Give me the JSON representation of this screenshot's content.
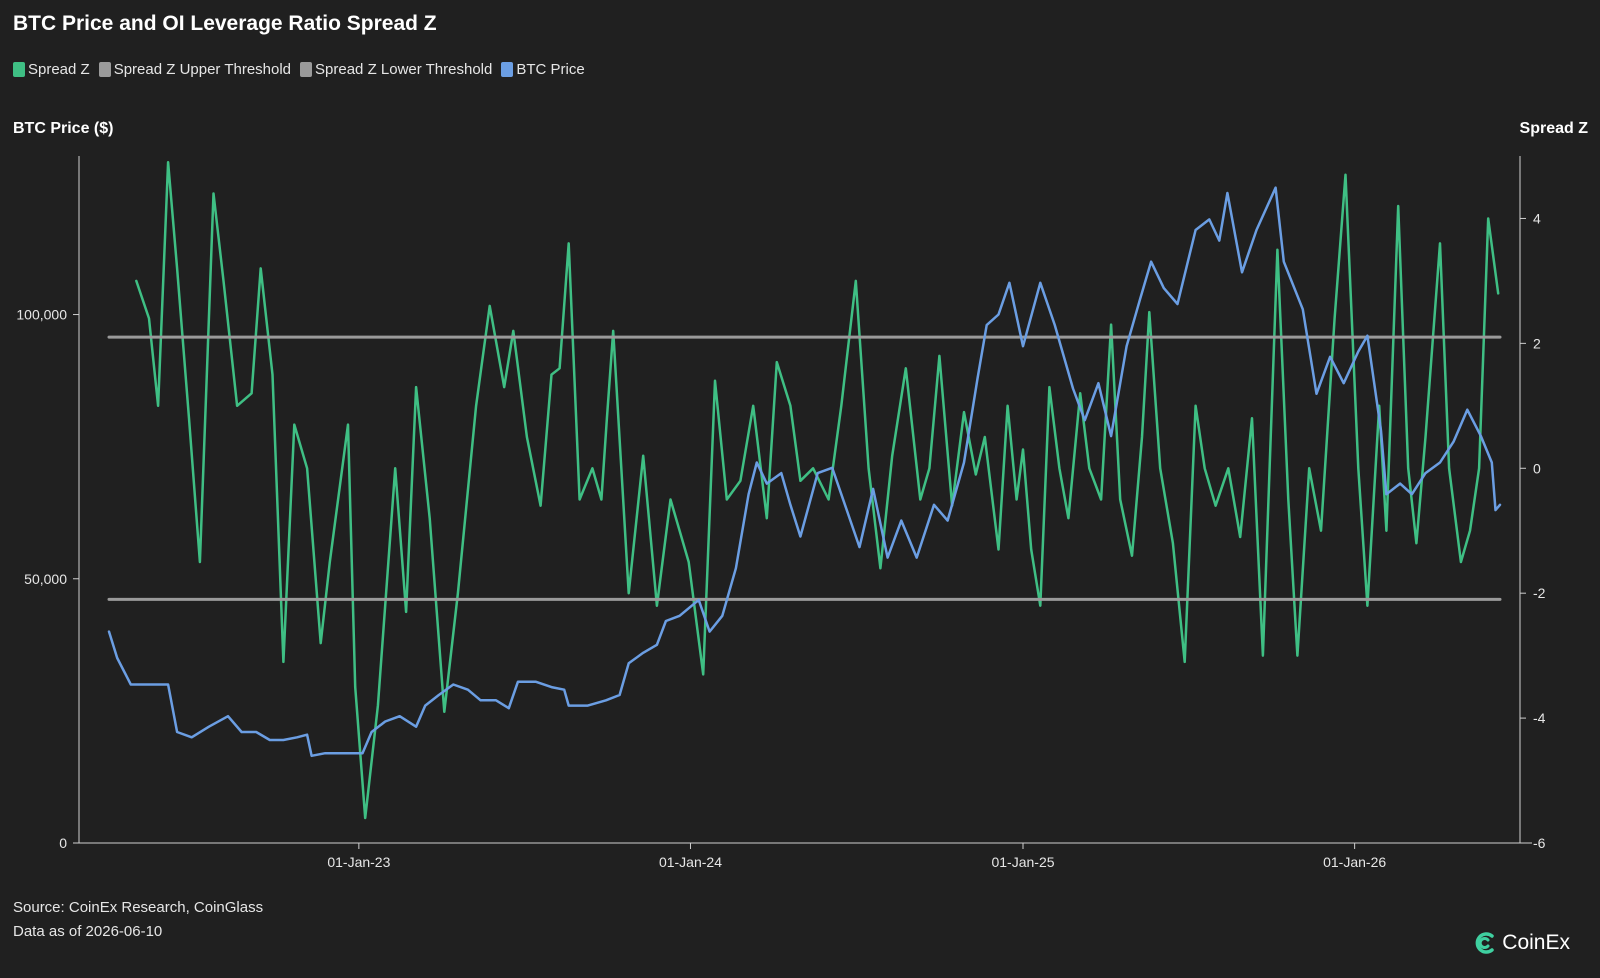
{
  "header": {
    "title": "BTC Price and OI Leverage Ratio Spread Z"
  },
  "legend": [
    {
      "label": "Spread Z",
      "color": "#3fbf84"
    },
    {
      "label": "Spread Z Upper Threshold",
      "color": "#9a9a9a"
    },
    {
      "label": "Spread Z Lower Threshold",
      "color": "#9a9a9a"
    },
    {
      "label": "BTC Price",
      "color": "#6b9ee3"
    }
  ],
  "axes": {
    "left_title": "BTC Price ($)",
    "right_title": "Spread Z"
  },
  "footer": {
    "source": "Source: CoinEx Research, CoinGlass",
    "data_as_of": "Data as of 2026-06-10"
  },
  "logo": {
    "text": "CoinEx",
    "icon": "coinex-logo-icon",
    "color": "#3fd0a0"
  },
  "chart_data": {
    "type": "line",
    "x_range": [
      "2022-04-01",
      "2026-06-10"
    ],
    "x_ticks": [
      {
        "date": "2023-01-01",
        "label": "01-Jan-23"
      },
      {
        "date": "2024-01-01",
        "label": "01-Jan-24"
      },
      {
        "date": "2025-01-01",
        "label": "01-Jan-25"
      },
      {
        "date": "2026-01-01",
        "label": "01-Jan-26"
      }
    ],
    "y_left": {
      "title": "BTC Price ($)",
      "range": [
        0,
        130000
      ],
      "ticks": [
        0,
        50000,
        100000
      ],
      "tick_labels": [
        "0",
        "50,000",
        "100,000"
      ]
    },
    "y_right": {
      "title": "Spread Z",
      "range": [
        -6,
        5
      ],
      "ticks": [
        -6,
        -4,
        -2,
        0,
        2,
        4
      ],
      "tick_labels": [
        "-6",
        "-4",
        "-2",
        "0",
        "2",
        "4"
      ]
    },
    "grid": false,
    "legend_position": "top-left",
    "series": [
      {
        "name": "Spread Z",
        "axis": "right",
        "color": "#3fbf84",
        "points": [
          [
            "2022-05-01",
            3.0
          ],
          [
            "2022-05-15",
            2.4
          ],
          [
            "2022-05-25",
            1.0
          ],
          [
            "2022-06-05",
            4.9
          ],
          [
            "2022-06-15",
            3.2
          ],
          [
            "2022-06-28",
            0.8
          ],
          [
            "2022-07-10",
            -1.5
          ],
          [
            "2022-07-25",
            4.4
          ],
          [
            "2022-08-05",
            3.0
          ],
          [
            "2022-08-20",
            1.0
          ],
          [
            "2022-09-05",
            1.2
          ],
          [
            "2022-09-15",
            3.2
          ],
          [
            "2022-09-28",
            1.5
          ],
          [
            "2022-10-10",
            -3.1
          ],
          [
            "2022-10-22",
            0.7
          ],
          [
            "2022-11-05",
            0.0
          ],
          [
            "2022-11-20",
            -2.8
          ],
          [
            "2022-11-30",
            -1.5
          ],
          [
            "2022-12-20",
            0.7
          ],
          [
            "2022-12-28",
            -3.5
          ],
          [
            "2023-01-08",
            -5.6
          ],
          [
            "2023-01-22",
            -3.8
          ],
          [
            "2023-02-10",
            0.0
          ],
          [
            "2023-02-22",
            -2.3
          ],
          [
            "2023-03-05",
            1.3
          ],
          [
            "2023-03-20",
            -0.8
          ],
          [
            "2023-04-05",
            -3.9
          ],
          [
            "2023-04-20",
            -2.0
          ],
          [
            "2023-05-10",
            1.0
          ],
          [
            "2023-05-25",
            2.6
          ],
          [
            "2023-06-10",
            1.3
          ],
          [
            "2023-06-20",
            2.2
          ],
          [
            "2023-07-05",
            0.5
          ],
          [
            "2023-07-20",
            -0.6
          ],
          [
            "2023-08-01",
            1.5
          ],
          [
            "2023-08-10",
            1.6
          ],
          [
            "2023-08-20",
            3.6
          ],
          [
            "2023-09-01",
            -0.5
          ],
          [
            "2023-09-15",
            0.0
          ],
          [
            "2023-09-25",
            -0.5
          ],
          [
            "2023-10-01",
            0.8
          ],
          [
            "2023-10-08",
            2.2
          ],
          [
            "2023-10-25",
            -2.0
          ],
          [
            "2023-11-10",
            0.2
          ],
          [
            "2023-11-25",
            -2.2
          ],
          [
            "2023-12-10",
            -0.5
          ],
          [
            "2023-12-20",
            -1.0
          ],
          [
            "2023-12-30",
            -1.5
          ],
          [
            "2024-01-15",
            -3.3
          ],
          [
            "2024-01-28",
            1.4
          ],
          [
            "2024-02-10",
            -0.5
          ],
          [
            "2024-02-25",
            -0.2
          ],
          [
            "2024-03-10",
            1.0
          ],
          [
            "2024-03-25",
            -0.8
          ],
          [
            "2024-04-05",
            1.7
          ],
          [
            "2024-04-20",
            1.0
          ],
          [
            "2024-05-01",
            -0.2
          ],
          [
            "2024-05-15",
            0.0
          ],
          [
            "2024-06-01",
            -0.5
          ],
          [
            "2024-06-15",
            1.0
          ],
          [
            "2024-07-01",
            3.0
          ],
          [
            "2024-07-15",
            0.0
          ],
          [
            "2024-07-28",
            -1.6
          ],
          [
            "2024-08-10",
            0.2
          ],
          [
            "2024-08-25",
            1.6
          ],
          [
            "2024-09-10",
            -0.5
          ],
          [
            "2024-09-20",
            0.0
          ],
          [
            "2024-10-01",
            1.8
          ],
          [
            "2024-10-15",
            -0.6
          ],
          [
            "2024-10-28",
            0.9
          ],
          [
            "2024-11-10",
            -0.1
          ],
          [
            "2024-11-20",
            0.5
          ],
          [
            "2024-12-05",
            -1.3
          ],
          [
            "2024-12-15",
            1.0
          ],
          [
            "2024-12-25",
            -0.5
          ],
          [
            "2025-01-01",
            0.3
          ],
          [
            "2025-01-10",
            -1.3
          ],
          [
            "2025-01-20",
            -2.2
          ],
          [
            "2025-01-30",
            1.3
          ],
          [
            "2025-02-10",
            0.0
          ],
          [
            "2025-02-20",
            -0.8
          ],
          [
            "2025-03-05",
            1.2
          ],
          [
            "2025-03-15",
            0.0
          ],
          [
            "2025-03-28",
            -0.5
          ],
          [
            "2025-04-08",
            2.3
          ],
          [
            "2025-04-18",
            -0.5
          ],
          [
            "2025-05-01",
            -1.4
          ],
          [
            "2025-05-12",
            0.5
          ],
          [
            "2025-05-20",
            2.5
          ],
          [
            "2025-06-01",
            0.0
          ],
          [
            "2025-06-15",
            -1.2
          ],
          [
            "2025-06-28",
            -3.1
          ],
          [
            "2025-07-10",
            1.0
          ],
          [
            "2025-07-20",
            0.0
          ],
          [
            "2025-08-01",
            -0.6
          ],
          [
            "2025-08-15",
            0.0
          ],
          [
            "2025-08-28",
            -1.1
          ],
          [
            "2025-09-10",
            0.8
          ],
          [
            "2025-09-22",
            -3.0
          ],
          [
            "2025-10-08",
            3.5
          ],
          [
            "2025-10-20",
            -0.5
          ],
          [
            "2025-10-30",
            -3.0
          ],
          [
            "2025-11-12",
            0.0
          ],
          [
            "2025-11-25",
            -1.0
          ],
          [
            "2025-12-10",
            2.4
          ],
          [
            "2025-12-22",
            4.7
          ],
          [
            "2026-01-05",
            0.0
          ],
          [
            "2026-01-15",
            -2.2
          ],
          [
            "2026-01-28",
            1.0
          ],
          [
            "2026-02-05",
            -1.0
          ],
          [
            "2026-02-18",
            4.2
          ],
          [
            "2026-03-01",
            0.0
          ],
          [
            "2026-03-10",
            -1.2
          ],
          [
            "2026-03-20",
            0.5
          ],
          [
            "2026-04-05",
            3.6
          ],
          [
            "2026-04-15",
            0.0
          ],
          [
            "2026-04-28",
            -1.5
          ],
          [
            "2026-05-08",
            -1.0
          ],
          [
            "2026-05-18",
            0.0
          ],
          [
            "2026-05-28",
            4.0
          ],
          [
            "2026-06-08",
            2.8
          ]
        ]
      },
      {
        "name": "Spread Z Upper Threshold",
        "axis": "right",
        "color": "#9a9a9a",
        "points": [
          [
            "2022-04-01",
            2.1
          ],
          [
            "2026-06-10",
            2.1
          ]
        ]
      },
      {
        "name": "Spread Z Lower Threshold",
        "axis": "right",
        "color": "#9a9a9a",
        "points": [
          [
            "2022-04-01",
            -2.1
          ],
          [
            "2026-06-10",
            -2.1
          ]
        ]
      },
      {
        "name": "BTC Price",
        "axis": "left",
        "color": "#6b9ee3",
        "points": [
          [
            "2022-04-01",
            40000
          ],
          [
            "2022-04-10",
            35000
          ],
          [
            "2022-04-25",
            30000
          ],
          [
            "2022-05-10",
            30000
          ],
          [
            "2022-05-20",
            30000
          ],
          [
            "2022-06-05",
            30000
          ],
          [
            "2022-06-15",
            21000
          ],
          [
            "2022-07-01",
            20000
          ],
          [
            "2022-07-20",
            22000
          ],
          [
            "2022-08-10",
            24000
          ],
          [
            "2022-08-25",
            21000
          ],
          [
            "2022-09-10",
            21000
          ],
          [
            "2022-09-25",
            19500
          ],
          [
            "2022-10-10",
            19500
          ],
          [
            "2022-10-25",
            20000
          ],
          [
            "2022-11-05",
            20500
          ],
          [
            "2022-11-10",
            16500
          ],
          [
            "2022-11-25",
            17000
          ],
          [
            "2022-12-15",
            17000
          ],
          [
            "2023-01-05",
            17000
          ],
          [
            "2023-01-15",
            21000
          ],
          [
            "2023-01-30",
            23000
          ],
          [
            "2023-02-15",
            24000
          ],
          [
            "2023-03-05",
            22000
          ],
          [
            "2023-03-15",
            26000
          ],
          [
            "2023-03-30",
            28000
          ],
          [
            "2023-04-15",
            30000
          ],
          [
            "2023-05-01",
            29000
          ],
          [
            "2023-05-15",
            27000
          ],
          [
            "2023-06-01",
            27000
          ],
          [
            "2023-06-15",
            25500
          ],
          [
            "2023-06-25",
            30500
          ],
          [
            "2023-07-15",
            30500
          ],
          [
            "2023-08-01",
            29500
          ],
          [
            "2023-08-15",
            29000
          ],
          [
            "2023-08-20",
            26000
          ],
          [
            "2023-09-10",
            26000
          ],
          [
            "2023-09-30",
            27000
          ],
          [
            "2023-10-15",
            28000
          ],
          [
            "2023-10-25",
            34000
          ],
          [
            "2023-11-10",
            36000
          ],
          [
            "2023-11-25",
            37500
          ],
          [
            "2023-12-05",
            42000
          ],
          [
            "2023-12-20",
            43000
          ],
          [
            "2024-01-10",
            46000
          ],
          [
            "2024-01-22",
            40000
          ],
          [
            "2024-02-05",
            43000
          ],
          [
            "2024-02-20",
            52000
          ],
          [
            "2024-03-05",
            66000
          ],
          [
            "2024-03-14",
            72000
          ],
          [
            "2024-03-25",
            68000
          ],
          [
            "2024-04-10",
            70000
          ],
          [
            "2024-04-20",
            64000
          ],
          [
            "2024-05-01",
            58000
          ],
          [
            "2024-05-20",
            70000
          ],
          [
            "2024-06-05",
            71000
          ],
          [
            "2024-06-25",
            61000
          ],
          [
            "2024-07-05",
            56000
          ],
          [
            "2024-07-20",
            67000
          ],
          [
            "2024-08-05",
            54000
          ],
          [
            "2024-08-20",
            61000
          ],
          [
            "2024-09-06",
            54000
          ],
          [
            "2024-09-25",
            64000
          ],
          [
            "2024-10-10",
            61000
          ],
          [
            "2024-10-28",
            72000
          ],
          [
            "2024-11-12",
            88000
          ],
          [
            "2024-11-22",
            98000
          ],
          [
            "2024-12-05",
            100000
          ],
          [
            "2024-12-17",
            106000
          ],
          [
            "2025-01-01",
            94000
          ],
          [
            "2025-01-20",
            106000
          ],
          [
            "2025-02-05",
            98000
          ],
          [
            "2025-02-25",
            86000
          ],
          [
            "2025-03-10",
            80000
          ],
          [
            "2025-03-25",
            87000
          ],
          [
            "2025-04-08",
            77000
          ],
          [
            "2025-04-25",
            94000
          ],
          [
            "2025-05-10",
            103000
          ],
          [
            "2025-05-22",
            110000
          ],
          [
            "2025-06-05",
            105000
          ],
          [
            "2025-06-20",
            102000
          ],
          [
            "2025-07-10",
            116000
          ],
          [
            "2025-07-25",
            118000
          ],
          [
            "2025-08-05",
            114000
          ],
          [
            "2025-08-14",
            123000
          ],
          [
            "2025-08-30",
            108000
          ],
          [
            "2025-09-15",
            116000
          ],
          [
            "2025-10-06",
            124000
          ],
          [
            "2025-10-15",
            110000
          ],
          [
            "2025-11-05",
            101000
          ],
          [
            "2025-11-20",
            85000
          ],
          [
            "2025-12-05",
            92000
          ],
          [
            "2025-12-20",
            87000
          ],
          [
            "2026-01-05",
            93000
          ],
          [
            "2026-01-15",
            96000
          ],
          [
            "2026-01-30",
            78000
          ],
          [
            "2026-02-05",
            66000
          ],
          [
            "2026-02-20",
            68000
          ],
          [
            "2026-03-05",
            66000
          ],
          [
            "2026-03-20",
            70000
          ],
          [
            "2026-04-05",
            72000
          ],
          [
            "2026-04-20",
            76000
          ],
          [
            "2026-05-05",
            82000
          ],
          [
            "2026-05-20",
            77000
          ],
          [
            "2026-06-01",
            72000
          ],
          [
            "2026-06-05",
            63000
          ],
          [
            "2026-06-10",
            64000
          ]
        ]
      }
    ]
  }
}
